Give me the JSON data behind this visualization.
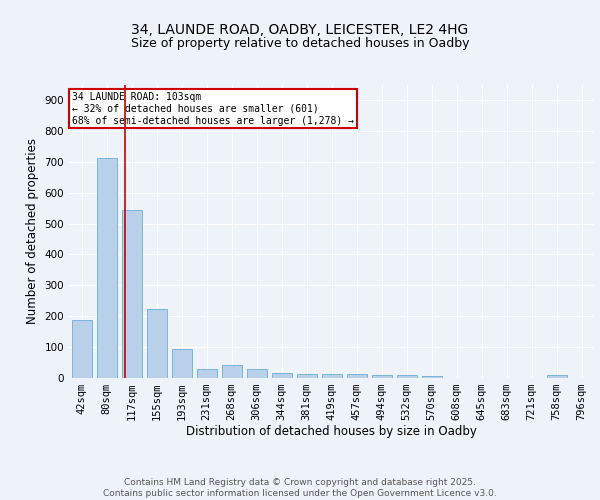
{
  "title_line1": "34, LAUNDE ROAD, OADBY, LEICESTER, LE2 4HG",
  "title_line2": "Size of property relative to detached houses in Oadby",
  "xlabel": "Distribution of detached houses by size in Oadby",
  "ylabel": "Number of detached properties",
  "categories": [
    "42sqm",
    "80sqm",
    "117sqm",
    "155sqm",
    "193sqm",
    "231sqm",
    "268sqm",
    "306sqm",
    "344sqm",
    "381sqm",
    "419sqm",
    "457sqm",
    "494sqm",
    "532sqm",
    "570sqm",
    "608sqm",
    "645sqm",
    "683sqm",
    "721sqm",
    "758sqm",
    "796sqm"
  ],
  "values": [
    188,
    712,
    543,
    224,
    91,
    29,
    40,
    26,
    13,
    12,
    11,
    10,
    8,
    8,
    5,
    0,
    0,
    0,
    0,
    7,
    0
  ],
  "bar_color": "#b8d0ea",
  "bar_edge_color": "#6aaed6",
  "red_line_x": 1.72,
  "annotation_title": "34 LAUNDE ROAD: 103sqm",
  "annotation_line2": "← 32% of detached houses are smaller (601)",
  "annotation_line3": "68% of semi-detached houses are larger (1,278) →",
  "annotation_box_facecolor": "#ffffff",
  "annotation_border_color": "#cc0000",
  "footer_line1": "Contains HM Land Registry data © Crown copyright and database right 2025.",
  "footer_line2": "Contains public sector information licensed under the Open Government Licence v3.0.",
  "ylim": [
    0,
    950
  ],
  "background_color": "#eef2f9",
  "plot_background": "#eef2f9",
  "grid_color": "#ffffff",
  "title_fontsize": 10,
  "subtitle_fontsize": 9,
  "axis_label_fontsize": 8.5,
  "tick_fontsize": 7.5,
  "footer_fontsize": 6.5
}
